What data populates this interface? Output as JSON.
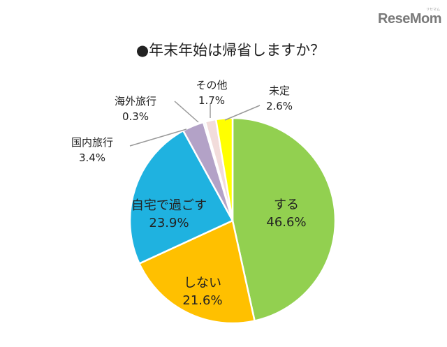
{
  "logo": {
    "text": "ReseMom",
    "kana": "リセマム"
  },
  "chart_data": {
    "type": "pie",
    "title": "●年末年始は帰省しますか？",
    "start": "12 o'clock",
    "direction": "clockwise",
    "slices": [
      {
        "label": "する",
        "value": 46.6,
        "value_text": "46.6%",
        "color": "#92d050",
        "label_position": "inside"
      },
      {
        "label": "しない",
        "value": 21.6,
        "value_text": "21.6%",
        "color": "#ffc000",
        "label_position": "inside"
      },
      {
        "label": "自宅で過ごす",
        "value": 23.9,
        "value_text": "23.9%",
        "color": "#1fb2e0",
        "label_position": "inside"
      },
      {
        "label": "国内旅行",
        "value": 3.4,
        "value_text": "3.4%",
        "color": "#b3a2c7",
        "label_position": "outside"
      },
      {
        "label": "海外旅行",
        "value": 0.3,
        "value_text": "0.3%",
        "color": "#95b3d7",
        "label_position": "outside"
      },
      {
        "label": "その他",
        "value": 1.7,
        "value_text": "1.7%",
        "color": "#f2dcdb",
        "label_position": "outside"
      },
      {
        "label": "未定",
        "value": 2.6,
        "value_text": "2.6%",
        "color": "#ffff00",
        "label_position": "outside"
      }
    ]
  }
}
